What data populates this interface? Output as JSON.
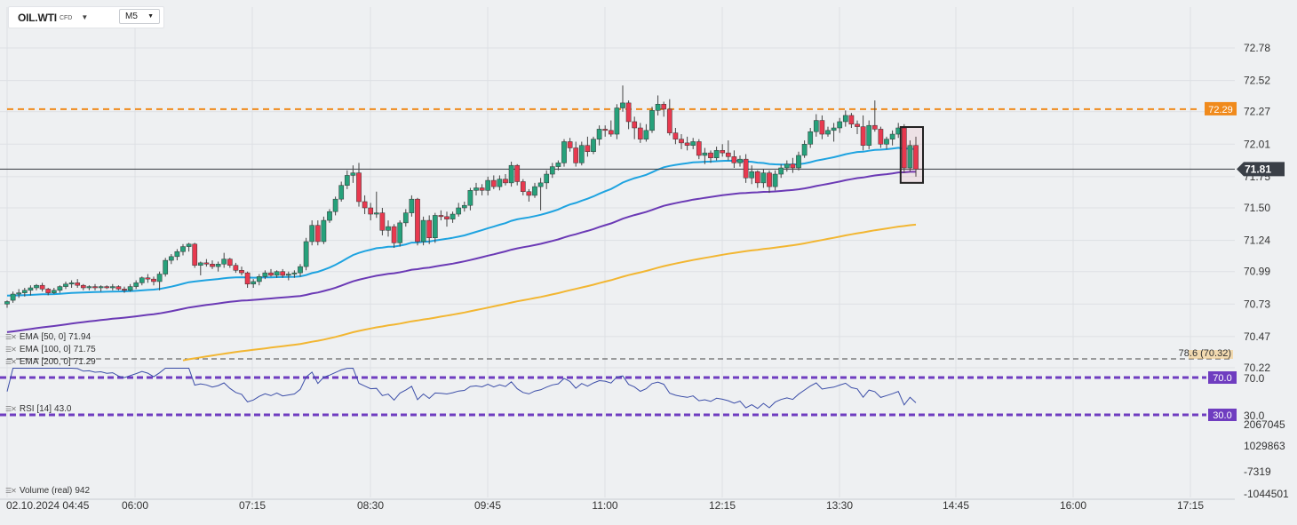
{
  "header": {
    "symbol": "OIL.WTI",
    "symbol_suffix": "CFD",
    "timeframe": "M5"
  },
  "indicators": {
    "ema50": {
      "label": "EMA",
      "params": "[50, 0]",
      "value": "71.94"
    },
    "ema100": {
      "label": "EMA",
      "params": "[100, 0]",
      "value": "71.75"
    },
    "ema200": {
      "label": "EMA",
      "params": "[200, 0]",
      "value": "71.29"
    },
    "rsi": {
      "label": "RSI",
      "params": "[14]",
      "value": "43.0"
    },
    "volume": {
      "label": "Volume",
      "params": "(real)",
      "value": "942"
    }
  },
  "colors": {
    "up": "#26a17b",
    "down": "#e8394f",
    "ema50": "#1ea3e0",
    "ema100": "#6b3ab5",
    "ema200": "#f2b632",
    "resistance": "#f08a1c",
    "rsi_band": "#6f3dc0",
    "price_line": "#35393f"
  },
  "chart_data": {
    "type": "candlestick",
    "price_axis": {
      "ticks": [
        "72.78",
        "72.52",
        "72.27",
        "72.01",
        "71.75",
        "71.50",
        "71.24",
        "70.99",
        "70.73",
        "70.47",
        "70.22"
      ],
      "range": [
        70.22,
        72.78
      ]
    },
    "time_axis": {
      "date": "02.10.2024",
      "ticks": [
        "04:45",
        "06:00",
        "07:15",
        "08:30",
        "09:45",
        "11:00",
        "12:15",
        "13:30",
        "14:45",
        "16:00",
        "17:15"
      ]
    },
    "current_price": "71.81",
    "resistance_level": "72.29",
    "fib_label": "78.6 (70.32)",
    "rsi": {
      "upper": "70.0",
      "lower": "30.0",
      "last": 43.0
    },
    "volume_axis": [
      "2067045",
      "1029863",
      "-7319",
      "-1044501"
    ],
    "candles": [
      [
        70.73,
        70.76,
        70.7,
        70.75
      ],
      [
        70.76,
        70.83,
        70.74,
        70.81
      ],
      [
        70.81,
        70.85,
        70.78,
        70.82
      ],
      [
        70.82,
        70.86,
        70.79,
        70.84
      ],
      [
        70.84,
        70.88,
        70.8,
        70.86
      ],
      [
        70.86,
        70.89,
        70.84,
        70.88
      ],
      [
        70.88,
        70.9,
        70.83,
        70.85
      ],
      [
        70.85,
        70.86,
        70.8,
        70.82
      ],
      [
        70.82,
        70.86,
        70.81,
        70.84
      ],
      [
        70.84,
        70.88,
        70.82,
        70.87
      ],
      [
        70.87,
        70.91,
        70.85,
        70.89
      ],
      [
        70.89,
        70.92,
        70.86,
        70.9
      ],
      [
        70.9,
        70.93,
        70.86,
        70.88
      ],
      [
        70.88,
        70.89,
        70.84,
        70.86
      ],
      [
        70.86,
        70.88,
        70.84,
        70.87
      ],
      [
        70.87,
        70.89,
        70.84,
        70.86
      ],
      [
        70.86,
        70.88,
        70.83,
        70.87
      ],
      [
        70.87,
        70.88,
        70.85,
        70.86
      ],
      [
        70.86,
        70.89,
        70.84,
        70.87
      ],
      [
        70.87,
        70.88,
        70.84,
        70.85
      ],
      [
        70.85,
        70.87,
        70.82,
        70.84
      ],
      [
        70.84,
        70.89,
        70.83,
        70.87
      ],
      [
        70.87,
        70.92,
        70.85,
        70.9
      ],
      [
        70.9,
        70.95,
        70.88,
        70.94
      ],
      [
        70.94,
        70.97,
        70.9,
        70.93
      ],
      [
        70.93,
        70.95,
        70.88,
        70.91
      ],
      [
        70.91,
        70.99,
        70.84,
        70.97
      ],
      [
        70.97,
        71.1,
        70.95,
        71.08
      ],
      [
        71.08,
        71.13,
        71.05,
        71.11
      ],
      [
        71.11,
        71.17,
        71.08,
        71.15
      ],
      [
        71.15,
        71.21,
        71.12,
        71.19
      ],
      [
        71.19,
        71.22,
        71.15,
        71.21
      ],
      [
        71.21,
        71.22,
        71.02,
        71.04
      ],
      [
        71.04,
        71.07,
        70.96,
        71.06
      ],
      [
        71.06,
        71.09,
        71.03,
        71.05
      ],
      [
        71.05,
        71.08,
        71.01,
        71.03
      ],
      [
        71.03,
        71.07,
        70.99,
        71.05
      ],
      [
        71.05,
        71.14,
        71.02,
        71.09
      ],
      [
        71.09,
        71.1,
        71.02,
        71.04
      ],
      [
        71.04,
        71.06,
        70.98,
        71.0
      ],
      [
        71.0,
        71.03,
        70.96,
        70.98
      ],
      [
        70.98,
        70.99,
        70.86,
        70.89
      ],
      [
        70.89,
        70.93,
        70.86,
        70.91
      ],
      [
        70.91,
        70.97,
        70.88,
        70.95
      ],
      [
        70.95,
        71.0,
        70.93,
        70.98
      ],
      [
        70.98,
        71.01,
        70.95,
        70.96
      ],
      [
        70.96,
        71.0,
        70.94,
        70.99
      ],
      [
        70.99,
        71.01,
        70.94,
        70.96
      ],
      [
        70.96,
        70.99,
        70.92,
        70.97
      ],
      [
        70.97,
        71.0,
        70.94,
        70.98
      ],
      [
        70.98,
        71.05,
        70.95,
        71.03
      ],
      [
        71.03,
        71.26,
        71.0,
        71.23
      ],
      [
        71.23,
        71.4,
        71.2,
        71.36
      ],
      [
        71.36,
        71.4,
        71.2,
        71.23
      ],
      [
        71.23,
        71.43,
        71.21,
        71.4
      ],
      [
        71.4,
        71.49,
        71.38,
        71.47
      ],
      [
        71.47,
        71.59,
        71.44,
        71.57
      ],
      [
        71.57,
        71.71,
        71.55,
        71.68
      ],
      [
        71.68,
        71.8,
        71.65,
        71.76
      ],
      [
        71.76,
        71.84,
        71.7,
        71.78
      ],
      [
        71.78,
        71.86,
        71.51,
        71.55
      ],
      [
        71.55,
        71.6,
        71.45,
        71.5
      ],
      [
        71.5,
        71.54,
        71.4,
        71.45
      ],
      [
        71.45,
        71.63,
        71.42,
        71.46
      ],
      [
        71.46,
        71.5,
        71.28,
        71.32
      ],
      [
        71.32,
        71.4,
        71.27,
        71.35
      ],
      [
        71.35,
        71.37,
        71.18,
        71.22
      ],
      [
        71.22,
        71.4,
        71.19,
        71.38
      ],
      [
        71.38,
        71.49,
        71.35,
        71.46
      ],
      [
        71.46,
        71.6,
        71.43,
        71.57
      ],
      [
        71.57,
        71.58,
        71.2,
        71.23
      ],
      [
        71.23,
        71.43,
        71.2,
        71.4
      ],
      [
        71.4,
        71.44,
        71.21,
        71.26
      ],
      [
        71.26,
        71.46,
        71.22,
        71.44
      ],
      [
        71.44,
        71.48,
        71.4,
        71.43
      ],
      [
        71.43,
        71.47,
        71.35,
        71.41
      ],
      [
        71.41,
        71.47,
        71.38,
        71.45
      ],
      [
        71.45,
        71.54,
        71.43,
        71.5
      ],
      [
        71.5,
        71.55,
        71.47,
        71.52
      ],
      [
        71.52,
        71.66,
        71.48,
        71.64
      ],
      [
        71.64,
        71.7,
        71.6,
        71.66
      ],
      [
        71.66,
        71.69,
        71.6,
        71.64
      ],
      [
        71.64,
        71.75,
        71.6,
        71.72
      ],
      [
        71.72,
        71.76,
        71.65,
        71.67
      ],
      [
        71.67,
        71.76,
        71.64,
        71.73
      ],
      [
        71.73,
        71.77,
        71.68,
        71.7
      ],
      [
        71.7,
        71.87,
        71.67,
        71.84
      ],
      [
        71.84,
        71.85,
        71.68,
        71.71
      ],
      [
        71.71,
        71.73,
        71.6,
        71.63
      ],
      [
        71.63,
        71.65,
        71.55,
        71.6
      ],
      [
        71.6,
        71.7,
        71.58,
        71.67
      ],
      [
        71.67,
        71.74,
        71.48,
        71.7
      ],
      [
        71.7,
        71.8,
        71.65,
        71.77
      ],
      [
        71.77,
        71.86,
        71.74,
        71.83
      ],
      [
        71.83,
        71.88,
        71.8,
        71.86
      ],
      [
        71.86,
        72.05,
        71.83,
        72.03
      ],
      [
        72.03,
        72.06,
        71.95,
        71.98
      ],
      [
        71.98,
        72.03,
        71.83,
        71.86
      ],
      [
        71.86,
        72.03,
        71.84,
        72.0
      ],
      [
        72.0,
        72.07,
        71.91,
        71.95
      ],
      [
        71.95,
        72.07,
        71.93,
        72.05
      ],
      [
        72.05,
        72.16,
        72.0,
        72.13
      ],
      [
        72.13,
        72.16,
        72.07,
        72.12
      ],
      [
        72.12,
        72.2,
        72.07,
        72.09
      ],
      [
        72.09,
        72.33,
        72.05,
        72.3
      ],
      [
        72.3,
        72.48,
        72.27,
        72.34
      ],
      [
        72.34,
        72.36,
        72.13,
        72.19
      ],
      [
        72.19,
        72.23,
        72.05,
        72.14
      ],
      [
        72.14,
        72.18,
        72.02,
        72.05
      ],
      [
        72.05,
        72.17,
        72.03,
        72.12
      ],
      [
        72.12,
        72.31,
        72.1,
        72.28
      ],
      [
        72.28,
        72.4,
        72.24,
        72.33
      ],
      [
        72.33,
        72.35,
        72.23,
        72.29
      ],
      [
        72.29,
        72.37,
        72.08,
        72.1
      ],
      [
        72.1,
        72.14,
        72.01,
        72.05
      ],
      [
        72.05,
        72.09,
        71.97,
        72.02
      ],
      [
        72.02,
        72.07,
        71.96,
        72.0
      ],
      [
        72.0,
        72.06,
        71.97,
        72.03
      ],
      [
        72.03,
        72.05,
        71.89,
        71.92
      ],
      [
        71.92,
        71.98,
        71.85,
        71.94
      ],
      [
        71.94,
        71.96,
        71.86,
        71.9
      ],
      [
        71.9,
        71.99,
        71.88,
        71.96
      ],
      [
        71.96,
        72.01,
        71.91,
        71.94
      ],
      [
        71.94,
        72.04,
        71.88,
        71.91
      ],
      [
        71.91,
        71.96,
        71.82,
        71.86
      ],
      [
        71.86,
        71.92,
        71.83,
        71.89
      ],
      [
        71.89,
        71.93,
        71.7,
        71.74
      ],
      [
        71.74,
        71.84,
        71.69,
        71.79
      ],
      [
        71.79,
        71.8,
        71.66,
        71.7
      ],
      [
        71.7,
        71.81,
        71.66,
        71.78
      ],
      [
        71.78,
        71.8,
        71.62,
        71.67
      ],
      [
        71.67,
        71.8,
        71.64,
        71.77
      ],
      [
        71.77,
        71.85,
        71.74,
        71.82
      ],
      [
        71.82,
        71.88,
        71.79,
        71.85
      ],
      [
        71.85,
        71.9,
        71.78,
        71.82
      ],
      [
        71.82,
        71.95,
        71.8,
        71.92
      ],
      [
        71.92,
        72.04,
        71.9,
        72.01
      ],
      [
        72.01,
        72.14,
        71.98,
        72.11
      ],
      [
        72.11,
        72.25,
        72.07,
        72.2
      ],
      [
        72.2,
        72.24,
        72.05,
        72.09
      ],
      [
        72.09,
        72.15,
        72.07,
        72.12
      ],
      [
        72.12,
        72.18,
        72.03,
        72.14
      ],
      [
        72.14,
        72.22,
        72.1,
        72.19
      ],
      [
        72.19,
        72.28,
        72.15,
        72.24
      ],
      [
        72.24,
        72.26,
        72.14,
        72.17
      ],
      [
        72.17,
        72.2,
        72.09,
        72.15
      ],
      [
        72.15,
        72.24,
        71.96,
        72.0
      ],
      [
        72.0,
        72.2,
        71.97,
        72.16
      ],
      [
        72.16,
        72.36,
        72.11,
        72.13
      ],
      [
        72.13,
        72.15,
        71.98,
        72.01
      ],
      [
        72.01,
        72.07,
        71.97,
        72.05
      ],
      [
        72.05,
        72.12,
        72.0,
        72.09
      ],
      [
        72.09,
        72.18,
        72.06,
        72.14
      ],
      [
        72.14,
        72.17,
        71.78,
        71.82
      ],
      [
        71.82,
        72.04,
        71.79,
        72.0
      ],
      [
        72.0,
        72.07,
        71.75,
        71.81
      ]
    ]
  }
}
